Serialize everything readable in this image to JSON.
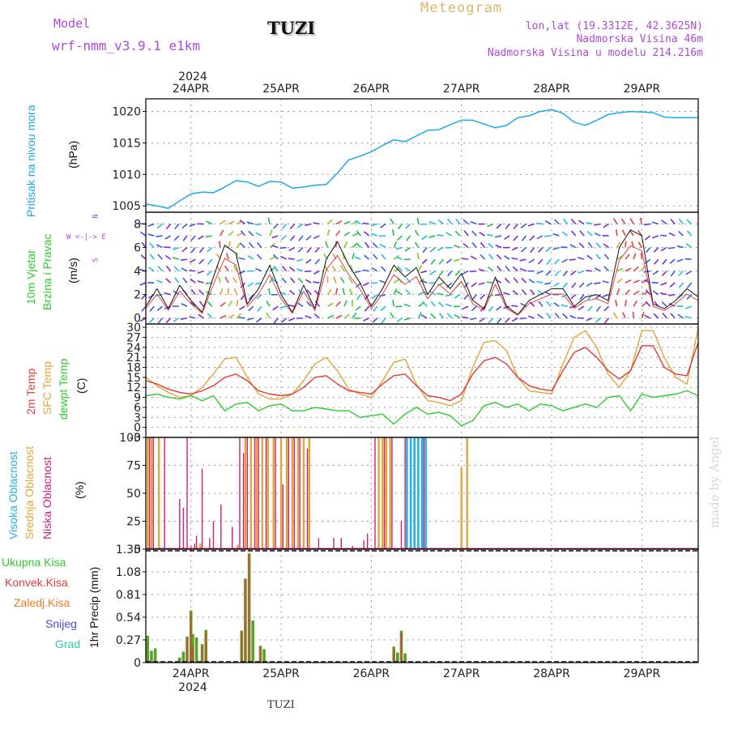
{
  "header": {
    "model_label": "Model",
    "model_name": "wrf-nmm_v3.9.1 e1km",
    "station": "TUZI",
    "meteogram": "Meteogram",
    "lonlat": "lon,lat (19.3312E, 42.3625N)",
    "elev": "Nadmorska Visina 46m",
    "elev_model": "Nadmorska Visina u modelu 214.216m",
    "year": "2024",
    "footer_station": "TUZI",
    "credit": "made by Angel"
  },
  "colors": {
    "pressure": "#1ea7f0",
    "t2m": "#e23c3c",
    "sfc": "#e0a63a",
    "dew": "#2ecc2e",
    "high_cloud": "#22b4e6",
    "mid_cloud": "#e0a63a",
    "low_cloud": "#cc1f7a",
    "purple": "#b04ad8"
  },
  "chart_data": [
    {
      "type": "line",
      "panel": "pressure",
      "ylabel_1": "Pritisak na nivou mora",
      "ylabel_2": "(hPa)",
      "ylim": [
        1004,
        1022
      ],
      "yticks": [
        1005,
        1010,
        1015,
        1020
      ],
      "x_ticks": [
        "24APR",
        "25APR",
        "26APR",
        "27APR",
        "28APR",
        "29APR"
      ],
      "x_day": [
        0,
        24,
        48,
        72,
        96,
        120
      ],
      "x_hours": [
        -12,
        -9,
        -6,
        -3,
        0,
        3,
        6,
        9,
        12,
        15,
        18,
        21,
        24,
        27,
        30,
        33,
        36,
        39,
        42,
        45,
        48,
        51,
        54,
        57,
        60,
        63,
        66,
        69,
        72,
        75,
        78,
        81,
        84,
        87,
        90,
        93,
        96,
        99,
        102,
        105,
        108,
        111,
        114,
        117,
        120,
        123,
        126,
        129,
        132,
        135
      ],
      "series": [
        {
          "values": [
            1005.3,
            1005.0,
            1004.6,
            1005.8,
            1006.9,
            1007.2,
            1007.1,
            1008.0,
            1009.0,
            1008.8,
            1008.1,
            1008.9,
            1008.8,
            1007.8,
            1008.0,
            1008.3,
            1008.4,
            1010.2,
            1012.3,
            1012.9,
            1013.6,
            1014.6,
            1015.5,
            1015.2,
            1016.1,
            1017.0,
            1017.1,
            1017.9,
            1018.6,
            1018.6,
            1018.0,
            1017.4,
            1017.8,
            1019.0,
            1019.3,
            1020.0,
            1020.3,
            1019.7,
            1018.3,
            1017.8,
            1018.6,
            1019.5,
            1019.8,
            1020.0,
            1019.9,
            1019.8,
            1019.1,
            1019.0,
            1019.0,
            1019.0
          ]
        }
      ]
    },
    {
      "type": "line",
      "panel": "wind",
      "ylabel_1": "10m Vjetar",
      "ylabel_2": "Brzina i Pravac",
      "ylabel_3": "(m/s)",
      "compass_1": "N",
      "compass_2": "W <-|-> E",
      "compass_3": "S",
      "ylim": [
        -0.5,
        9
      ],
      "yticks": [
        0,
        2,
        4,
        6,
        8
      ],
      "x_hours": [
        -12,
        -9,
        -6,
        -3,
        0,
        3,
        6,
        9,
        12,
        15,
        18,
        21,
        24,
        27,
        30,
        33,
        36,
        39,
        42,
        45,
        48,
        51,
        54,
        57,
        60,
        63,
        66,
        69,
        72,
        75,
        78,
        81,
        84,
        87,
        90,
        93,
        96,
        99,
        102,
        105,
        108,
        111,
        114,
        117,
        120,
        123,
        126,
        129,
        132,
        135
      ],
      "series": [
        {
          "name": "speed",
          "values": [
            1.0,
            2.5,
            0.8,
            2.8,
            1.5,
            0.5,
            3.5,
            6.2,
            5.5,
            1.2,
            2.5,
            4.5,
            2.0,
            0.5,
            2.8,
            0.8,
            5.0,
            6.5,
            4.5,
            3.0,
            1.0,
            2.5,
            4.5,
            3.5,
            4.3,
            2.0,
            3.5,
            2.5,
            3.8,
            1.5,
            0.8,
            3.5,
            1.0,
            0.3,
            1.5,
            2.0,
            2.5,
            2.5,
            1.0,
            1.8,
            2.0,
            1.5,
            6.0,
            7.5,
            7.0,
            1.2,
            0.8,
            1.5,
            2.5,
            1.8
          ]
        }
      ]
    },
    {
      "type": "line",
      "panel": "temperature",
      "ylabel_1": "2m Temp",
      "ylabel_2": "SFC Temp",
      "ylabel_3": "dewpt Temp",
      "ylabel_4": "(C)",
      "ylim": [
        -3,
        31
      ],
      "yticks": [
        -3,
        0,
        3,
        6,
        9,
        12,
        15,
        18,
        21,
        24,
        27,
        30
      ],
      "x_hours": [
        -12,
        -9,
        -6,
        -3,
        0,
        3,
        6,
        9,
        12,
        15,
        18,
        21,
        24,
        27,
        30,
        33,
        36,
        39,
        42,
        45,
        48,
        51,
        54,
        57,
        60,
        63,
        66,
        69,
        72,
        75,
        78,
        81,
        84,
        87,
        90,
        93,
        96,
        99,
        102,
        105,
        108,
        111,
        114,
        117,
        120,
        123,
        126,
        129,
        132,
        135
      ],
      "series": [
        {
          "name": "2m Temp",
          "values": [
            14.0,
            13.0,
            11.5,
            10.5,
            10.0,
            11.0,
            12.5,
            15.0,
            16.0,
            14.0,
            11.0,
            10.0,
            9.5,
            10.0,
            12.0,
            15.0,
            15.5,
            13.0,
            11.0,
            10.5,
            10.0,
            13.0,
            15.5,
            16.0,
            12.5,
            9.5,
            9.0,
            8.0,
            10.0,
            16.0,
            20.0,
            21.0,
            19.0,
            15.0,
            12.5,
            11.5,
            11.0,
            17.0,
            22.5,
            24.0,
            21.0,
            17.0,
            14.5,
            17.0,
            24.5,
            24.5,
            18.0,
            16.0,
            15.5,
            25.5
          ]
        },
        {
          "name": "SFC Temp",
          "values": [
            15.0,
            12.5,
            10.5,
            9.0,
            9.5,
            12.0,
            16.0,
            20.5,
            21.0,
            15.0,
            10.0,
            8.5,
            8.5,
            10.0,
            14.0,
            19.0,
            21.0,
            17.0,
            11.5,
            10.0,
            9.0,
            14.0,
            19.5,
            20.5,
            13.0,
            8.0,
            7.5,
            6.5,
            8.0,
            18.0,
            25.5,
            26.0,
            23.0,
            15.0,
            11.0,
            10.5,
            10.0,
            19.0,
            27.0,
            29.0,
            24.0,
            16.0,
            12.0,
            17.0,
            29.0,
            29.0,
            21.0,
            15.0,
            13.0,
            30.0
          ]
        },
        {
          "name": "dewpt Temp",
          "values": [
            9.5,
            10.0,
            9.0,
            8.5,
            9.5,
            8.0,
            9.5,
            5.0,
            7.0,
            7.5,
            5.0,
            6.5,
            7.0,
            5.0,
            5.0,
            6.0,
            5.5,
            5.0,
            5.0,
            3.0,
            3.5,
            4.0,
            1.0,
            4.0,
            6.0,
            4.0,
            4.5,
            3.5,
            0.5,
            2.0,
            6.5,
            7.5,
            6.0,
            7.0,
            5.0,
            7.0,
            6.5,
            5.0,
            6.0,
            7.0,
            6.0,
            9.0,
            9.5,
            5.0,
            10.0,
            9.0,
            9.5,
            10.0,
            11.0,
            9.5
          ]
        }
      ]
    },
    {
      "type": "bar",
      "panel": "clouds",
      "ylabel_1": "Visoka Oblacnost",
      "ylabel_2": "Srednja Oblacnost",
      "ylabel_3": "Niska Oblacnost",
      "ylabel_4": "(%)",
      "ylim": [
        0,
        100
      ],
      "yticks": [
        0,
        25,
        50,
        75,
        100
      ],
      "series": [
        {
          "name": "Srednja",
          "x": [
            -11.5,
            -10.5,
            -8.5,
            0,
            2.5,
            12.5,
            14.5,
            16,
            17.5,
            19,
            20.5,
            22,
            24,
            25.5,
            27,
            28.5,
            30,
            31.5,
            50,
            51,
            52,
            53,
            72,
            73.5
          ],
          "values": [
            100,
            100,
            100,
            3,
            5,
            4,
            100,
            100,
            100,
            100,
            100,
            100,
            100,
            100,
            100,
            100,
            100,
            100,
            100,
            100,
            100,
            100,
            73,
            100
          ]
        },
        {
          "name": "Niska",
          "x": [
            -11,
            -10,
            -7,
            -3,
            -2,
            -1,
            1,
            1.5,
            3,
            5,
            6,
            8,
            11,
            13,
            14,
            15,
            17,
            18,
            20,
            22.5,
            24.5,
            26,
            27.5,
            29,
            31,
            34,
            38,
            40,
            43,
            46,
            47,
            49,
            51.5,
            53.5,
            56,
            57,
            58.5,
            60.5,
            62
          ],
          "values": [
            100,
            100,
            100,
            45,
            37,
            100,
            5,
            12,
            72,
            10,
            25,
            40,
            20,
            100,
            86,
            100,
            100,
            100,
            100,
            100,
            58,
            100,
            100,
            100,
            90,
            10,
            10,
            10,
            3,
            8,
            14,
            100,
            100,
            100,
            25,
            100,
            73,
            100,
            100
          ]
        },
        {
          "name": "Visoka",
          "x": [
            57.5,
            58.5,
            59.5,
            60.5,
            61.5,
            62.5
          ],
          "values": [
            100,
            100,
            100,
            100,
            100,
            100
          ]
        }
      ]
    },
    {
      "type": "bar",
      "panel": "precip",
      "ylabel": "1hr Precip (mm)",
      "legend_1": "Ukupna Kisa",
      "legend_2": "Konvek.Kisa",
      "legend_3": "Zaledj.Kisa",
      "legend_4": "Snijeg",
      "legend_5": "Grad",
      "ylim": [
        0,
        1.35
      ],
      "yticks": [
        "0",
        "0.27",
        "0.54",
        "0.81",
        "1.08",
        "1.35"
      ],
      "yvals": [
        0,
        0.27,
        0.54,
        0.81,
        1.08,
        1.35
      ],
      "series": [
        {
          "name": "Ukupna Kisa",
          "x": [
            -11.5,
            -10.5,
            -9.5,
            -3,
            -2,
            -1,
            0,
            0.5,
            1.5,
            3,
            4,
            13.5,
            14.5,
            15.5,
            16.5,
            18.5,
            19.5,
            54,
            55,
            56,
            57
          ],
          "values": [
            0.32,
            0.14,
            0.17,
            0.06,
            0.13,
            0.31,
            0.62,
            0.34,
            0.3,
            0.22,
            0.39,
            0.38,
            1.0,
            1.3,
            0.5,
            0.2,
            0.16,
            0.19,
            0.12,
            0.38,
            0.11
          ]
        },
        {
          "name": "Konvek.Kisa",
          "x": [
            -1,
            0,
            0.5,
            3,
            4,
            13.5,
            14.5,
            15.5,
            18.5,
            54,
            56
          ],
          "values": [
            0.3,
            0.6,
            0.2,
            0.2,
            0.35,
            0.38,
            0.98,
            1.28,
            0.2,
            0.15,
            0.35
          ]
        }
      ]
    }
  ]
}
